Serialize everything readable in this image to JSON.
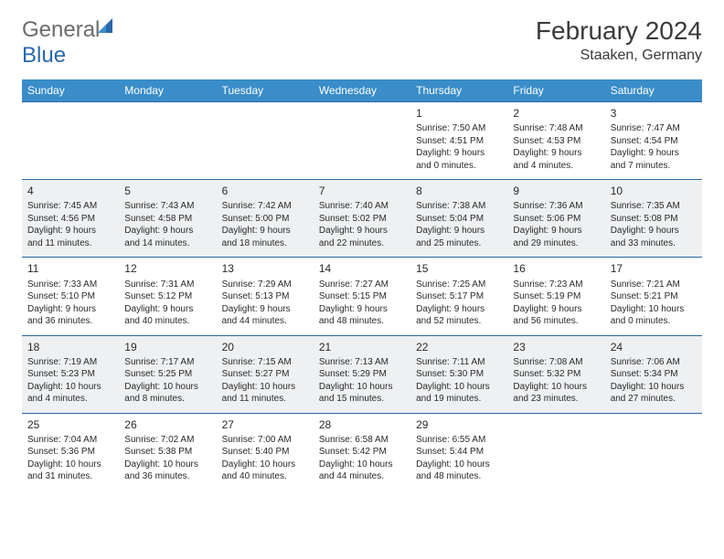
{
  "brand": {
    "text1": "General",
    "text2": "Blue"
  },
  "title": "February 2024",
  "location": "Staaken, Germany",
  "colors": {
    "header_bg": "#3a8dc8",
    "header_text": "#ffffff",
    "row_alt_bg": "#eef0f2",
    "border": "#2968a8",
    "text": "#2a2a2a",
    "logo_gray": "#6b6b6b",
    "logo_blue": "#2968a8"
  },
  "weekdays": [
    "Sunday",
    "Monday",
    "Tuesday",
    "Wednesday",
    "Thursday",
    "Friday",
    "Saturday"
  ],
  "weeks": [
    [
      null,
      null,
      null,
      null,
      {
        "n": "1",
        "sunrise": "7:50 AM",
        "sunset": "4:51 PM",
        "dl_h": "9",
        "dl_m": "0"
      },
      {
        "n": "2",
        "sunrise": "7:48 AM",
        "sunset": "4:53 PM",
        "dl_h": "9",
        "dl_m": "4"
      },
      {
        "n": "3",
        "sunrise": "7:47 AM",
        "sunset": "4:54 PM",
        "dl_h": "9",
        "dl_m": "7"
      }
    ],
    [
      {
        "n": "4",
        "sunrise": "7:45 AM",
        "sunset": "4:56 PM",
        "dl_h": "9",
        "dl_m": "11"
      },
      {
        "n": "5",
        "sunrise": "7:43 AM",
        "sunset": "4:58 PM",
        "dl_h": "9",
        "dl_m": "14"
      },
      {
        "n": "6",
        "sunrise": "7:42 AM",
        "sunset": "5:00 PM",
        "dl_h": "9",
        "dl_m": "18"
      },
      {
        "n": "7",
        "sunrise": "7:40 AM",
        "sunset": "5:02 PM",
        "dl_h": "9",
        "dl_m": "22"
      },
      {
        "n": "8",
        "sunrise": "7:38 AM",
        "sunset": "5:04 PM",
        "dl_h": "9",
        "dl_m": "25"
      },
      {
        "n": "9",
        "sunrise": "7:36 AM",
        "sunset": "5:06 PM",
        "dl_h": "9",
        "dl_m": "29"
      },
      {
        "n": "10",
        "sunrise": "7:35 AM",
        "sunset": "5:08 PM",
        "dl_h": "9",
        "dl_m": "33"
      }
    ],
    [
      {
        "n": "11",
        "sunrise": "7:33 AM",
        "sunset": "5:10 PM",
        "dl_h": "9",
        "dl_m": "36"
      },
      {
        "n": "12",
        "sunrise": "7:31 AM",
        "sunset": "5:12 PM",
        "dl_h": "9",
        "dl_m": "40"
      },
      {
        "n": "13",
        "sunrise": "7:29 AM",
        "sunset": "5:13 PM",
        "dl_h": "9",
        "dl_m": "44"
      },
      {
        "n": "14",
        "sunrise": "7:27 AM",
        "sunset": "5:15 PM",
        "dl_h": "9",
        "dl_m": "48"
      },
      {
        "n": "15",
        "sunrise": "7:25 AM",
        "sunset": "5:17 PM",
        "dl_h": "9",
        "dl_m": "52"
      },
      {
        "n": "16",
        "sunrise": "7:23 AM",
        "sunset": "5:19 PM",
        "dl_h": "9",
        "dl_m": "56"
      },
      {
        "n": "17",
        "sunrise": "7:21 AM",
        "sunset": "5:21 PM",
        "dl_h": "10",
        "dl_m": "0"
      }
    ],
    [
      {
        "n": "18",
        "sunrise": "7:19 AM",
        "sunset": "5:23 PM",
        "dl_h": "10",
        "dl_m": "4"
      },
      {
        "n": "19",
        "sunrise": "7:17 AM",
        "sunset": "5:25 PM",
        "dl_h": "10",
        "dl_m": "8"
      },
      {
        "n": "20",
        "sunrise": "7:15 AM",
        "sunset": "5:27 PM",
        "dl_h": "10",
        "dl_m": "11"
      },
      {
        "n": "21",
        "sunrise": "7:13 AM",
        "sunset": "5:29 PM",
        "dl_h": "10",
        "dl_m": "15"
      },
      {
        "n": "22",
        "sunrise": "7:11 AM",
        "sunset": "5:30 PM",
        "dl_h": "10",
        "dl_m": "19"
      },
      {
        "n": "23",
        "sunrise": "7:08 AM",
        "sunset": "5:32 PM",
        "dl_h": "10",
        "dl_m": "23"
      },
      {
        "n": "24",
        "sunrise": "7:06 AM",
        "sunset": "5:34 PM",
        "dl_h": "10",
        "dl_m": "27"
      }
    ],
    [
      {
        "n": "25",
        "sunrise": "7:04 AM",
        "sunset": "5:36 PM",
        "dl_h": "10",
        "dl_m": "31"
      },
      {
        "n": "26",
        "sunrise": "7:02 AM",
        "sunset": "5:38 PM",
        "dl_h": "10",
        "dl_m": "36"
      },
      {
        "n": "27",
        "sunrise": "7:00 AM",
        "sunset": "5:40 PM",
        "dl_h": "10",
        "dl_m": "40"
      },
      {
        "n": "28",
        "sunrise": "6:58 AM",
        "sunset": "5:42 PM",
        "dl_h": "10",
        "dl_m": "44"
      },
      {
        "n": "29",
        "sunrise": "6:55 AM",
        "sunset": "5:44 PM",
        "dl_h": "10",
        "dl_m": "48"
      },
      null,
      null
    ]
  ],
  "labels": {
    "sunrise": "Sunrise: ",
    "sunset": "Sunset: ",
    "daylight_prefix": "Daylight: ",
    "hours_word": " hours",
    "and_word": "and ",
    "minutes_word": " minutes."
  }
}
